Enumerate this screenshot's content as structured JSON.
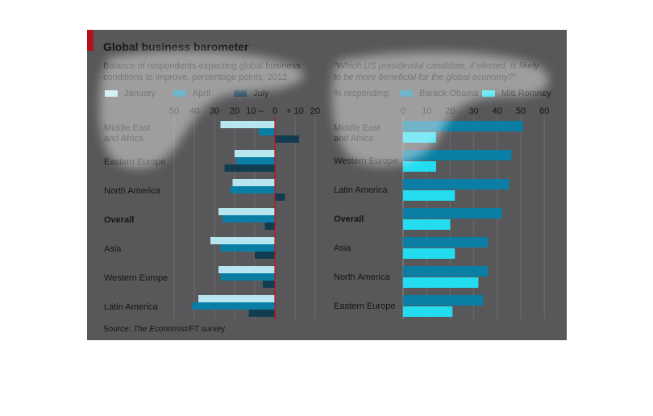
{
  "title": "Global business barometer",
  "source_prefix": "Source: ",
  "source_italic": "The Economist/FT",
  "source_suffix": " survey",
  "chart_data": [
    {
      "type": "bar",
      "orientation": "horizontal",
      "subtitle_line1": "Balance of respondents expecting global business",
      "subtitle_line2": "conditions to improve, percentage points, 2012",
      "categories": [
        "Middle East|and Africa",
        "Eastern Europe",
        "North America",
        "Overall",
        "Asia",
        "Western Europe",
        "Latin America"
      ],
      "bold_category": "Overall",
      "series": [
        {
          "name": "January",
          "values": [
            -27,
            -20,
            -21,
            -28,
            -32,
            -28,
            -38
          ]
        },
        {
          "name": "April",
          "values": [
            -8,
            -19,
            -22,
            -26,
            -27,
            -27,
            -41
          ]
        },
        {
          "name": "July",
          "values": [
            12,
            -25,
            5,
            -5,
            -10,
            -6,
            -13
          ]
        }
      ],
      "series_colors": {
        "January": "#b8e6f0",
        "April": "#0a7ea4",
        "July": "#123c50"
      },
      "xlim": [
        -50,
        20
      ],
      "tick_values": [
        -50,
        -40,
        -30,
        -20,
        -10,
        0,
        10,
        20
      ],
      "tick_labels": [
        "50",
        "40",
        "30",
        "20",
        "10 –",
        "0",
        "+ 10",
        "20"
      ],
      "grid": true
    },
    {
      "type": "bar",
      "orientation": "horizontal",
      "subtitle_line1": "“Which US presidential candidate, if elected, is likely",
      "subtitle_line2": "to be more beneficial for the global economy?”",
      "legend_prefix": "% responding:",
      "categories": [
        "Middle East|and Africa",
        "Western Europe",
        "Latin America",
        "Overall",
        "Asia",
        "North America",
        "Eastern Europe"
      ],
      "bold_category": "Overall",
      "series": [
        {
          "name": "Barack Obama",
          "values": [
            51,
            46,
            45,
            42,
            36,
            36,
            34
          ]
        },
        {
          "name": "Mitt Romney",
          "values": [
            14,
            14,
            22,
            20,
            22,
            32,
            21
          ]
        }
      ],
      "series_colors": {
        "Barack Obama": "#0a7ea4",
        "Mitt Romney": "#23dcf0"
      },
      "xlim": [
        0,
        60
      ],
      "tick_values": [
        0,
        10,
        20,
        30,
        40,
        50,
        60
      ],
      "tick_labels": [
        "0",
        "10",
        "20",
        "30",
        "40",
        "50",
        "60"
      ],
      "grid": true
    }
  ]
}
